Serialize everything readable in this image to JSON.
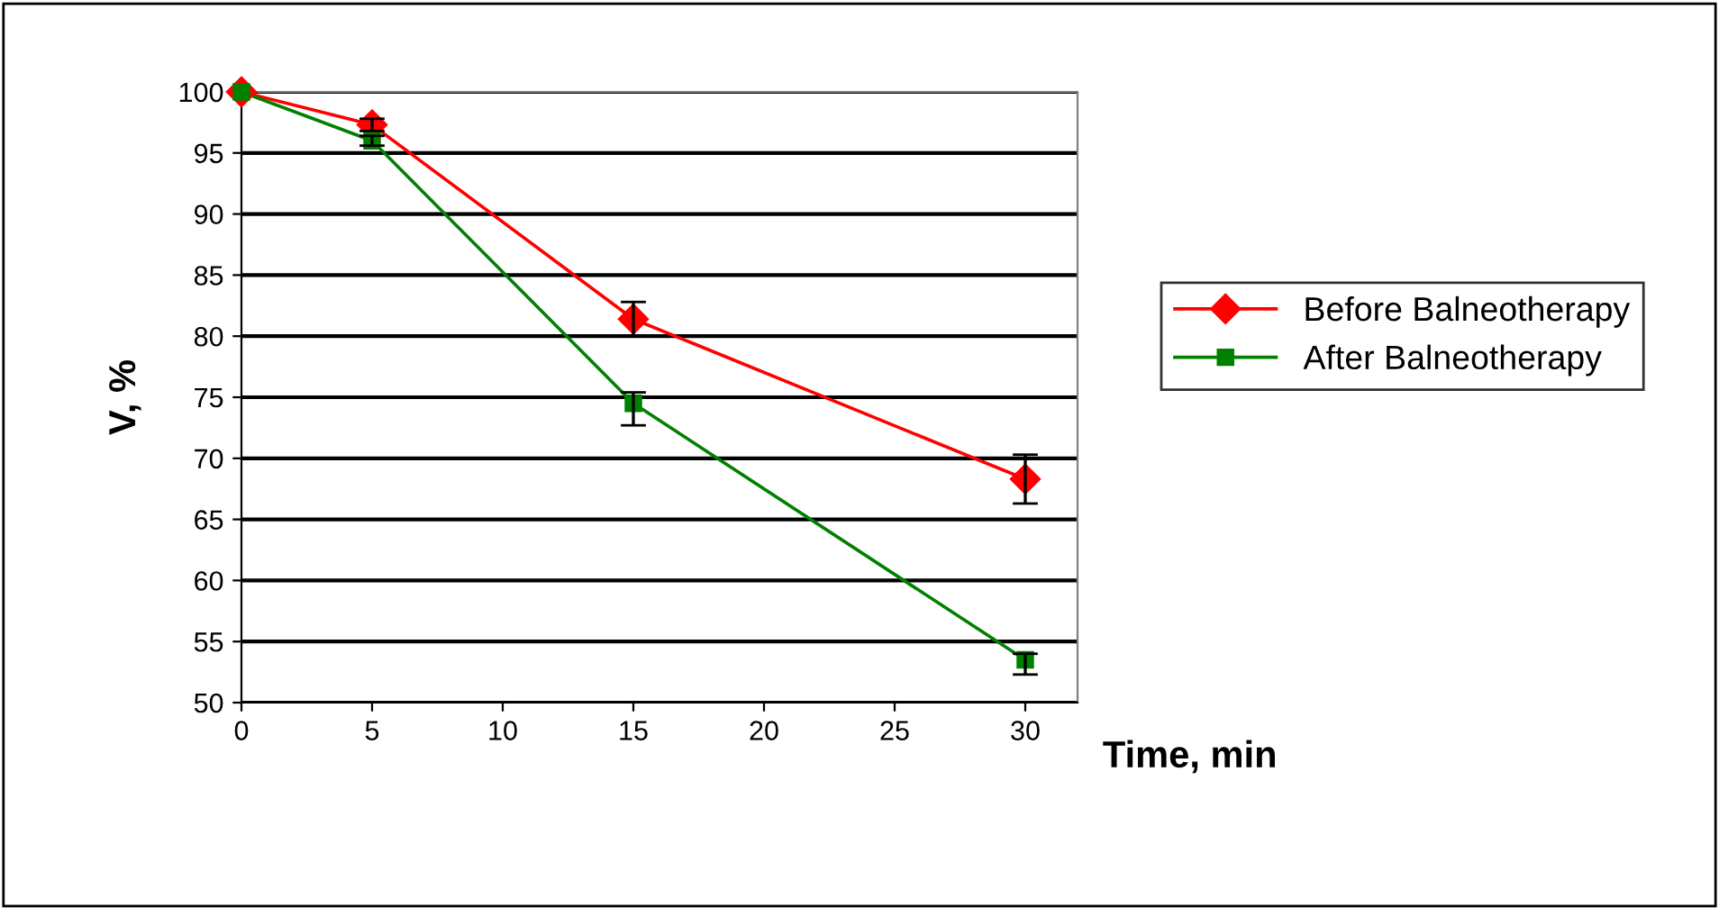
{
  "chart_data": {
    "type": "line",
    "xlabel": "Time, min",
    "ylabel": "V, %",
    "x": [
      0,
      5,
      15,
      30
    ],
    "series": [
      {
        "name": "Before Balneotherapy",
        "color": "#ff0000",
        "marker": "diamond",
        "values": [
          100,
          97.3,
          81.4,
          68.3
        ],
        "errors": [
          null,
          0.5,
          1.4,
          2
        ]
      },
      {
        "name": "After Balneotherapy",
        "color": "#008000",
        "marker": "square",
        "values": [
          100,
          96.0,
          74.5,
          53.5
        ],
        "errors": [
          null,
          0.4,
          [
            72.7,
            75.4
          ],
          [
            52.3,
            54.0
          ]
        ]
      }
    ],
    "xlim": [
      0,
      32
    ],
    "ylim": [
      50,
      100
    ],
    "xticks": [
      0,
      5,
      10,
      15,
      20,
      25,
      30
    ],
    "yticks": [
      50,
      55,
      60,
      65,
      70,
      75,
      80,
      85,
      90,
      95,
      100
    ],
    "grid": "y",
    "legend": "right"
  }
}
